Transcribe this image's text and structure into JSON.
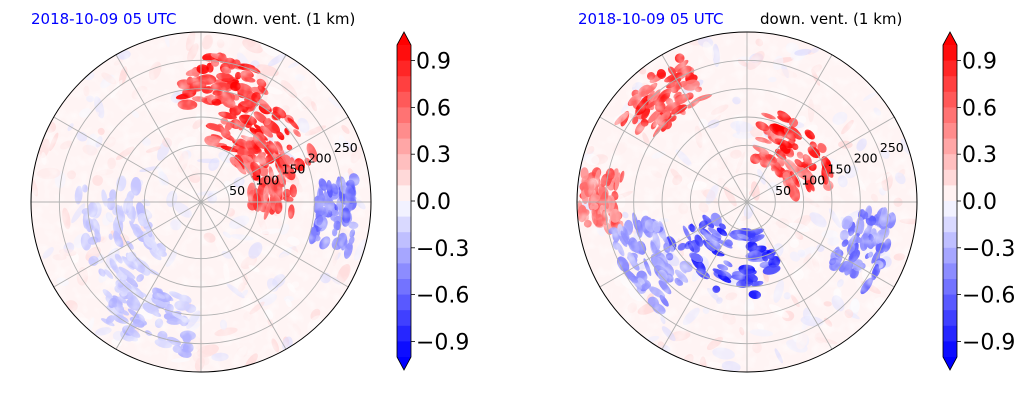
{
  "colors": {
    "timestamp": "#0000ff",
    "positive": "#ff0000",
    "negative": "#0000ff",
    "neutral": "#ffffff",
    "grid": "#b0b0b0",
    "outline": "#000000"
  },
  "chart_data": [
    {
      "type": "heatmap",
      "projection": "polar",
      "title_left": "2018-10-09 05 UTC",
      "title_right": "down. vent. (1 km)",
      "radial_ticks": [
        "50",
        "100",
        "150",
        "200",
        "250"
      ],
      "rlim": [
        0,
        300
      ],
      "grid": true,
      "colormap": "bwr",
      "clim": [
        -1.0,
        1.0
      ],
      "colorbar_ticks": [
        "0.9",
        "0.6",
        "0.3",
        "0.0",
        "−0.3",
        "−0.6",
        "−0.9"
      ],
      "colorbar_extend": "both",
      "features": [
        {
          "sign": "positive",
          "azimuth_deg": 40,
          "range_km": 160,
          "spread_km": 55,
          "intensity": 1.0
        },
        {
          "sign": "positive",
          "azimuth_deg": 10,
          "range_km": 215,
          "spread_km": 45,
          "intensity": 1.0
        },
        {
          "sign": "positive",
          "azimuth_deg": 70,
          "range_km": 130,
          "spread_km": 40,
          "intensity": 0.9
        },
        {
          "sign": "negative",
          "azimuth_deg": 95,
          "range_km": 240,
          "spread_km": 35,
          "intensity": 0.6
        },
        {
          "sign": "negative",
          "azimuth_deg": 205,
          "range_km": 220,
          "spread_km": 50,
          "intensity": 0.3
        },
        {
          "sign": "negative",
          "azimuth_deg": 250,
          "range_km": 160,
          "spread_km": 60,
          "intensity": 0.25
        }
      ]
    },
    {
      "type": "heatmap",
      "projection": "polar",
      "title_left": "2018-10-09 05 UTC",
      "title_right": "down. vent. (1 km)",
      "radial_ticks": [
        "50",
        "100",
        "150",
        "200",
        "250"
      ],
      "rlim": [
        0,
        300
      ],
      "grid": true,
      "colormap": "bwr",
      "clim": [
        -1.0,
        1.0
      ],
      "colorbar_ticks": [
        "0.9",
        "0.6",
        "0.3",
        "0.0",
        "−0.3",
        "−0.6",
        "−0.9"
      ],
      "colorbar_extend": "both",
      "features": [
        {
          "sign": "positive",
          "azimuth_deg": 45,
          "range_km": 120,
          "spread_km": 45,
          "intensity": 1.0
        },
        {
          "sign": "positive",
          "azimuth_deg": 320,
          "range_km": 240,
          "spread_km": 45,
          "intensity": 0.9
        },
        {
          "sign": "positive",
          "azimuth_deg": 270,
          "range_km": 260,
          "spread_km": 35,
          "intensity": 0.7
        },
        {
          "sign": "negative",
          "azimuth_deg": 200,
          "range_km": 110,
          "spread_km": 55,
          "intensity": 0.9
        },
        {
          "sign": "negative",
          "azimuth_deg": 240,
          "range_km": 200,
          "spread_km": 45,
          "intensity": 0.5
        },
        {
          "sign": "negative",
          "azimuth_deg": 110,
          "range_km": 220,
          "spread_km": 40,
          "intensity": 0.6
        }
      ]
    }
  ]
}
